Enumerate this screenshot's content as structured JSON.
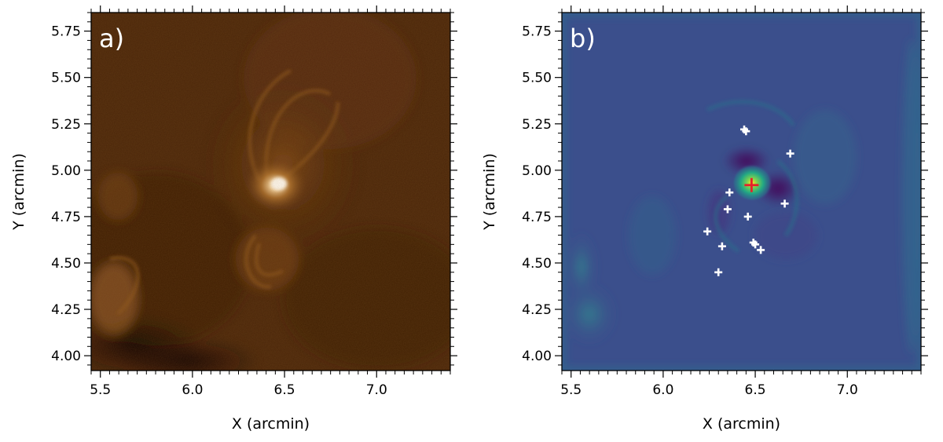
{
  "chart_data": [
    {
      "type": "heatmap",
      "panel_label": "a)",
      "colormap": "sdoaia171",
      "xlabel": "X (arcmin)",
      "ylabel": "Y (arcmin)",
      "xlim": [
        5.45,
        7.4
      ],
      "ylim": [
        3.92,
        5.85
      ],
      "xticks": [
        5.5,
        6.0,
        6.5,
        7.0
      ],
      "xtick_labels": [
        "5.5",
        "6.0",
        "6.5",
        "7.0"
      ],
      "yticks": [
        4.0,
        4.25,
        4.5,
        4.75,
        5.0,
        5.25,
        5.5,
        5.75
      ],
      "ytick_labels": [
        "4.00",
        "4.25",
        "4.50",
        "4.75",
        "5.00",
        "5.25",
        "5.50",
        "5.75"
      ],
      "bright_source": {
        "x": 6.48,
        "y": 4.92
      }
    },
    {
      "type": "heatmap",
      "panel_label": "b)",
      "colormap": "viridis",
      "xlabel": "X (arcmin)",
      "ylabel": "Y (arcmin)",
      "xlim": [
        5.45,
        7.4
      ],
      "ylim": [
        3.92,
        5.85
      ],
      "xticks": [
        5.5,
        6.0,
        6.5,
        7.0
      ],
      "xtick_labels": [
        "5.5",
        "6.0",
        "6.5",
        "7.0"
      ],
      "yticks": [
        4.0,
        4.25,
        4.5,
        4.75,
        5.0,
        5.25,
        5.5,
        5.75
      ],
      "ytick_labels": [
        "4.00",
        "4.25",
        "4.50",
        "4.75",
        "5.00",
        "5.25",
        "5.50",
        "5.75"
      ],
      "main_marker": {
        "x": 6.48,
        "y": 4.92,
        "color": "#e8202a"
      },
      "markers": [
        {
          "x": 6.44,
          "y": 5.22
        },
        {
          "x": 6.45,
          "y": 5.21
        },
        {
          "x": 6.69,
          "y": 5.09
        },
        {
          "x": 6.36,
          "y": 4.88
        },
        {
          "x": 6.35,
          "y": 4.79
        },
        {
          "x": 6.46,
          "y": 4.75
        },
        {
          "x": 6.66,
          "y": 4.82
        },
        {
          "x": 6.24,
          "y": 4.67
        },
        {
          "x": 6.32,
          "y": 4.59
        },
        {
          "x": 6.49,
          "y": 4.61
        },
        {
          "x": 6.5,
          "y": 4.6
        },
        {
          "x": 6.53,
          "y": 4.57
        },
        {
          "x": 6.3,
          "y": 4.45
        }
      ],
      "marker_color": "#ffffff"
    }
  ]
}
